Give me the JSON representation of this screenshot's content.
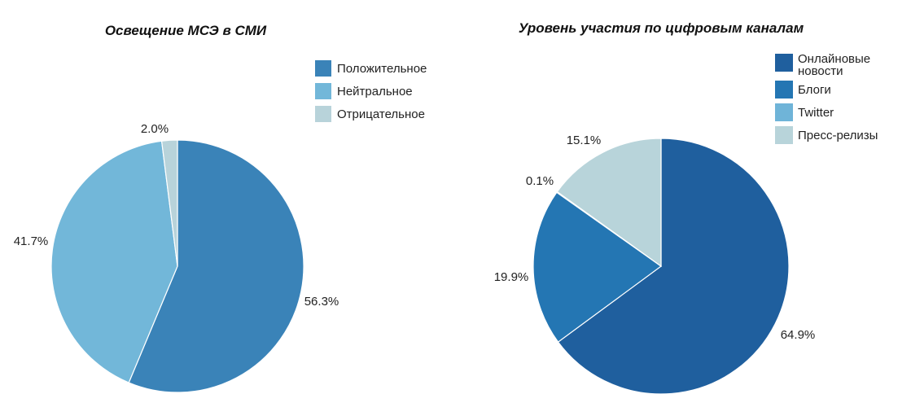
{
  "chart_data": [
    {
      "type": "pie",
      "title": "Освещение МСЭ в СМИ",
      "categories": [
        "Положительное",
        "Нейтральное",
        "Отрицательное"
      ],
      "values": [
        56.3,
        41.7,
        2.0
      ],
      "value_labels": [
        "56.3%",
        "41.7%",
        "2.0%"
      ],
      "colors": [
        "#3a83b8",
        "#72b7d9",
        "#b8d3da"
      ],
      "start": "12 o'clock",
      "direction": "clockwise",
      "legend": "right"
    },
    {
      "type": "pie",
      "title": "Уровень участия по цифровым каналам",
      "categories": [
        "Онлайновые новости",
        "Блоги",
        "Twitter",
        "Пресс-релизы"
      ],
      "legend_lines": [
        [
          "Онлайновые",
          "новости"
        ],
        [
          "Блоги"
        ],
        [
          "Twitter"
        ],
        [
          "Пресс-релизы"
        ]
      ],
      "values": [
        64.9,
        19.9,
        0.1,
        15.1
      ],
      "value_labels": [
        "64.9%",
        "19.9%",
        "0.1%",
        "15.1%"
      ],
      "colors": [
        "#1f5f9e",
        "#2476b3",
        "#6fb4d8",
        "#b8d4da"
      ],
      "start": "12 o'clock",
      "direction": "clockwise",
      "legend": "right"
    }
  ]
}
